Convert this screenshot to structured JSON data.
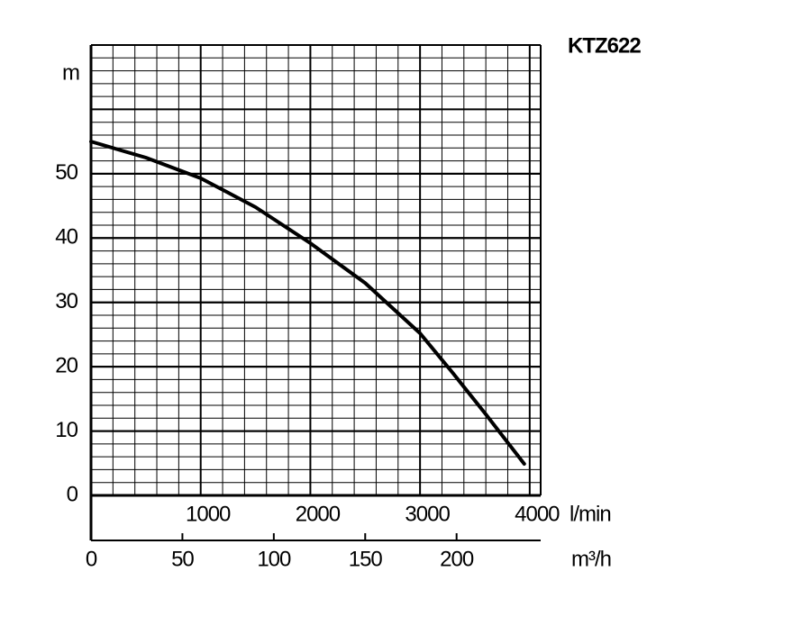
{
  "chart_data": {
    "type": "line",
    "title": "KTZ622",
    "ylabel": "m",
    "xlabel": "l/min",
    "x2label": "m³/h",
    "x": [
      0,
      500,
      1000,
      1500,
      2000,
      2500,
      3000,
      3300,
      3600,
      3950
    ],
    "series": [
      {
        "color": "#000000",
        "values": [
          55,
          52.5,
          49.3,
          44.8,
          39.2,
          33,
          25.2,
          19,
          12.6,
          4.9
        ]
      }
    ],
    "xlim": [
      0,
      4100
    ],
    "xticks": [
      1000,
      2000,
      3000,
      4000
    ],
    "x2lim": [
      0,
      246
    ],
    "x2ticks": [
      0,
      50,
      100,
      150,
      200
    ],
    "ylim": [
      0,
      70
    ],
    "yticks": [
      0,
      10,
      20,
      30,
      40,
      50
    ],
    "grid": true,
    "xminor": 200,
    "yminor": 2,
    "ymajor": 10
  }
}
